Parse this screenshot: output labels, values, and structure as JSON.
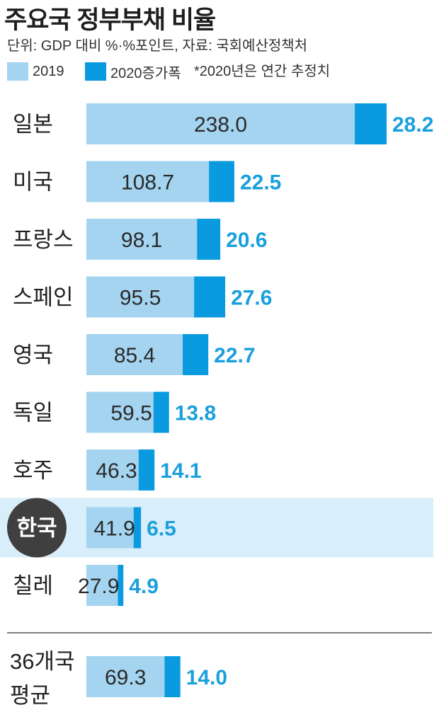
{
  "title": "주요국 정부부채 비율",
  "subtitle": "단위: GDP 대비 %·%포인트, 자료: 국회예산정책처",
  "legend": {
    "base_label": "2019",
    "increase_label": "2020증가폭",
    "note": "*2020년은 연간 추정치"
  },
  "colors": {
    "base": "#a4d4f0",
    "increase": "#0a9ae0",
    "highlight_band": "#d8eefa",
    "highlight_circle": "#3f3f3f",
    "increase_text": "#1aa0dc",
    "separator": "#555555"
  },
  "chart_data": {
    "type": "bar",
    "orientation": "horizontal",
    "stacked": true,
    "categories": [
      "일본",
      "미국",
      "프랑스",
      "스페인",
      "영국",
      "독일",
      "호주",
      "한국",
      "칠레",
      "36개국 평균"
    ],
    "series": [
      {
        "name": "2019",
        "values": [
          238.0,
          108.7,
          98.1,
          95.5,
          85.4,
          59.5,
          46.3,
          41.9,
          27.9,
          69.3
        ]
      },
      {
        "name": "2020증가폭",
        "values": [
          28.2,
          22.5,
          20.6,
          27.6,
          22.7,
          13.8,
          14.1,
          6.5,
          4.9,
          14.0
        ]
      }
    ],
    "value_labels_base": [
      "238.0",
      "108.7",
      "98.1",
      "95.5",
      "85.4",
      "59.5",
      "46.3",
      "41.9",
      "27.9",
      "69.3"
    ],
    "value_labels_increase": [
      "28.2",
      "22.5",
      "20.6",
      "27.6",
      "22.7",
      "13.8",
      "14.1",
      "6.5",
      "4.9",
      "14.0"
    ],
    "highlight_category": "한국",
    "xlim": [
      0,
      266.2
    ],
    "grid": false,
    "legend_position": "top-left"
  }
}
